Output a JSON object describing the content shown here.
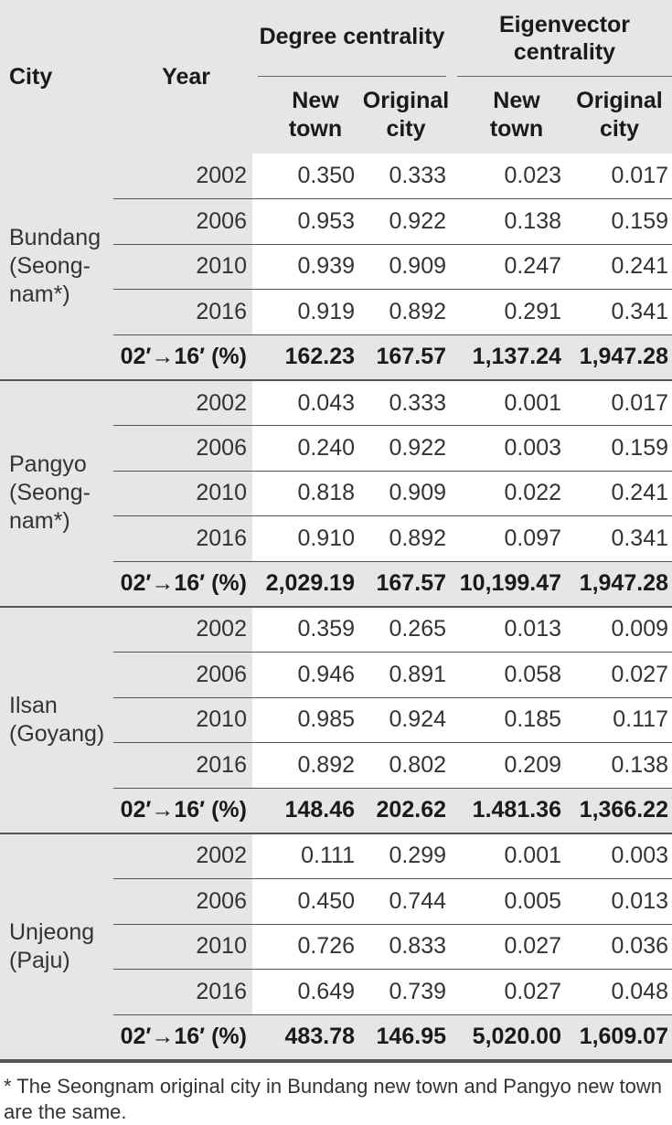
{
  "header": {
    "city": "City",
    "year": "Year",
    "degree": "Degree centrality",
    "eigen": "Eigenvector centrality",
    "new_town": "New town",
    "original_city": "Original city"
  },
  "groups": [
    {
      "city_line1": "Bundang",
      "city_line2": "(Seong-",
      "city_line3": "nam*)",
      "rows": [
        [
          "2002",
          "0.350",
          "0.333",
          "0.023",
          "0.017"
        ],
        [
          "2006",
          "0.953",
          "0.922",
          "0.138",
          "0.159"
        ],
        [
          "2010",
          "0.939",
          "0.909",
          "0.247",
          "0.241"
        ],
        [
          "2016",
          "0.919",
          "0.892",
          "0.291",
          "0.341"
        ]
      ],
      "summary": [
        "02′→16′ (%)",
        "162.23",
        "167.57",
        "1,137.24",
        "1,947.28"
      ]
    },
    {
      "city_line1": "Pangyo",
      "city_line2": "(Seong-",
      "city_line3": "nam*)",
      "rows": [
        [
          "2002",
          "0.043",
          "0.333",
          "0.001",
          "0.017"
        ],
        [
          "2006",
          "0.240",
          "0.922",
          "0.003",
          "0.159"
        ],
        [
          "2010",
          "0.818",
          "0.909",
          "0.022",
          "0.241"
        ],
        [
          "2016",
          "0.910",
          "0.892",
          "0.097",
          "0.341"
        ]
      ],
      "summary": [
        "02′→16′ (%)",
        "2,029.19",
        "167.57",
        "10,199.47",
        "1,947.28"
      ]
    },
    {
      "city_line1": "Ilsan",
      "city_line2": "(Goyang)",
      "city_line3": "",
      "rows": [
        [
          "2002",
          "0.359",
          "0.265",
          "0.013",
          "0.009"
        ],
        [
          "2006",
          "0.946",
          "0.891",
          "0.058",
          "0.027"
        ],
        [
          "2010",
          "0.985",
          "0.924",
          "0.185",
          "0.117"
        ],
        [
          "2016",
          "0.892",
          "0.802",
          "0.209",
          "0.138"
        ]
      ],
      "summary": [
        "02′→16′ (%)",
        "148.46",
        "202.62",
        "1.481.36",
        "1,366.22"
      ]
    },
    {
      "city_line1": "Unjeong",
      "city_line2": "(Paju)",
      "city_line3": "",
      "rows": [
        [
          "2002",
          "0.111",
          "0.299",
          "0.001",
          "0.003"
        ],
        [
          "2006",
          "0.450",
          "0.744",
          "0.005",
          "0.013"
        ],
        [
          "2010",
          "0.726",
          "0.833",
          "0.027",
          "0.036"
        ],
        [
          "2016",
          "0.649",
          "0.739",
          "0.027",
          "0.048"
        ]
      ],
      "summary": [
        "02′→16′ (%)",
        "483.78",
        "146.95",
        "5,020.00",
        "1,609.07"
      ]
    }
  ],
  "footnote": "* The Seongnam original city in Bundang new town and Pangyo new town are the same."
}
